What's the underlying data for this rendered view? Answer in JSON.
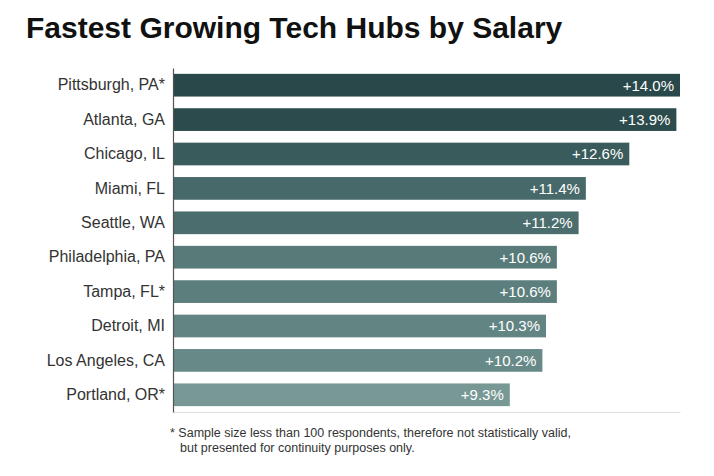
{
  "chart_data": {
    "type": "bar",
    "orientation": "horizontal",
    "title": "Fastest Growing Tech Hubs by Salary",
    "categories": [
      "Pittsburgh, PA*",
      "Atlanta, GA",
      "Chicago, IL",
      "Miami, FL",
      "Seattle, WA",
      "Philadelphia, PA",
      "Tampa, FL*",
      "Detroit, MI",
      "Los Angeles, CA",
      "Portland, OR*"
    ],
    "values": [
      14.0,
      13.9,
      12.6,
      11.4,
      11.2,
      10.6,
      10.6,
      10.3,
      10.2,
      9.3
    ],
    "value_labels": [
      "+14.0%",
      "+13.9%",
      "+12.6%",
      "+11.4%",
      "+11.2%",
      "+10.6%",
      "+10.6%",
      "+10.3%",
      "+10.2%",
      "+9.3%"
    ],
    "colors": [
      "#294849",
      "#2c4b4d",
      "#3a5b5c",
      "#476969",
      "#4b6d6d",
      "#587b7a",
      "#5c7f7e",
      "#628584",
      "#678a88",
      "#789895"
    ],
    "xlim": [
      0,
      14.0
    ],
    "data_labels": true,
    "tick_labels": "y",
    "grid": false,
    "footnote": [
      "* Sample size less than 100 respondents, therefore not statistically valid,",
      "but presented for continuity purposes only."
    ]
  }
}
